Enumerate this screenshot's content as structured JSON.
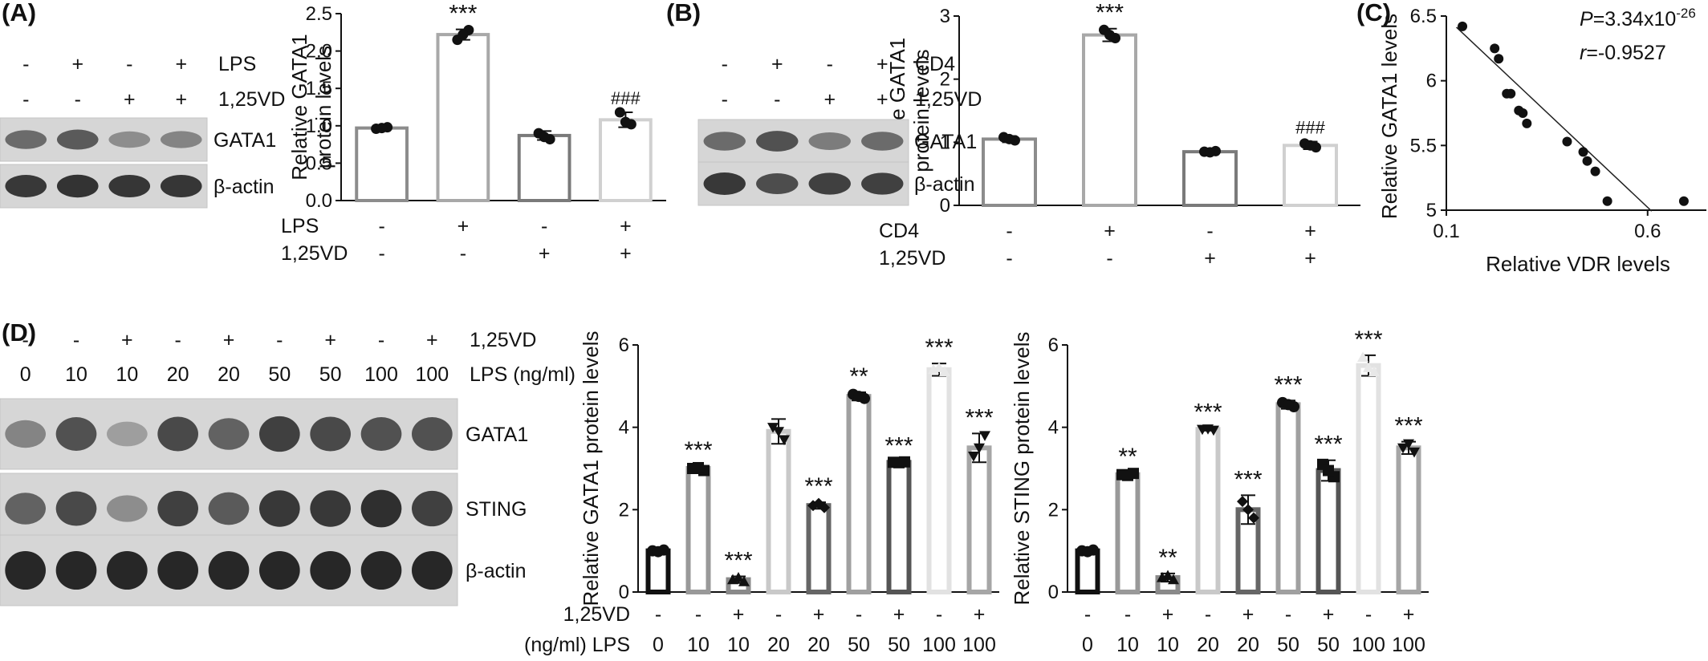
{
  "panels": {
    "A": {
      "label": "(A)",
      "blot": {
        "treatment_rows": [
          {
            "name": "LPS",
            "signs": [
              "-",
              "+",
              "-",
              "+"
            ]
          },
          {
            "name": "1,25VD",
            "signs": [
              "-",
              "-",
              "+",
              "+"
            ]
          }
        ],
        "bands": [
          "GATA1",
          "β-actin"
        ],
        "intensity": [
          [
            0.55,
            0.65,
            0.35,
            0.4
          ],
          [
            0.85,
            0.88,
            0.86,
            0.86
          ]
        ]
      }
    },
    "B": {
      "label": "(B)",
      "blot": {
        "treatment_rows": [
          {
            "name": "CD4",
            "signs": [
              "-",
              "+",
              "-",
              "+"
            ]
          },
          {
            "name": "1,25VD",
            "signs": [
              "-",
              "-",
              "+",
              "+"
            ]
          }
        ],
        "bands": [
          "GATA1",
          "β-actin"
        ],
        "intensity": [
          [
            0.55,
            0.7,
            0.45,
            0.55
          ],
          [
            0.85,
            0.72,
            0.8,
            0.8
          ]
        ]
      }
    },
    "C": {
      "label": "(C)"
    },
    "D": {
      "label": "(D)",
      "blot": {
        "treatment_rows": [
          {
            "name": "1,25VD",
            "signs": [
              "-",
              "-",
              "+",
              "-",
              "+",
              "-",
              "+",
              "-",
              "+"
            ]
          },
          {
            "name": "LPS (ng/ml)",
            "signs": [
              "0",
              "10",
              "10",
              "20",
              "20",
              "50",
              "50",
              "100",
              "100"
            ]
          }
        ],
        "bands": [
          "GATA1",
          "STING",
          "β-actin"
        ],
        "intensity": [
          [
            0.4,
            0.7,
            0.25,
            0.75,
            0.6,
            0.8,
            0.75,
            0.7,
            0.7
          ],
          [
            0.6,
            0.75,
            0.35,
            0.8,
            0.65,
            0.85,
            0.85,
            0.9,
            0.8
          ],
          [
            0.95,
            0.95,
            0.95,
            0.95,
            0.95,
            0.95,
            0.95,
            0.95,
            0.95
          ]
        ]
      }
    }
  },
  "chart_data": [
    {
      "id": "A-bar",
      "type": "bar",
      "ylabel": "Relative GATA1 protein levels",
      "ylim": [
        0,
        2.5
      ],
      "yticks": [
        "0.0",
        "0.5",
        "1.0",
        "1.5",
        "2.0",
        "2.5"
      ],
      "values": [
        0.97,
        2.22,
        0.87,
        1.08
      ],
      "errors": [
        0.02,
        0.07,
        0.06,
        0.1
      ],
      "points": [
        [
          0.96,
          0.98,
          0.97
        ],
        [
          2.15,
          2.28,
          2.22
        ],
        [
          0.9,
          0.82,
          0.85
        ],
        [
          1.18,
          1.02,
          1.05
        ]
      ],
      "bar_colors": [
        "#8c8c8c",
        "#a8a8a8",
        "#7a7a7a",
        "#d0d0d0"
      ],
      "annotations": [
        "",
        "***",
        "",
        "###"
      ],
      "condition_rows": [
        {
          "name": "LPS",
          "signs": [
            "-",
            "+",
            "-",
            "+"
          ]
        },
        {
          "name": "1,25VD",
          "signs": [
            "-",
            "-",
            "+",
            "+"
          ]
        }
      ]
    },
    {
      "id": "B-bar",
      "type": "bar",
      "ylabel": "Relative GATA1 protein levels",
      "ylim": [
        0,
        3
      ],
      "yticks": [
        "0",
        "1",
        "2",
        "3"
      ],
      "values": [
        1.05,
        2.7,
        0.85,
        0.95
      ],
      "errors": [
        0.05,
        0.1,
        0.03,
        0.06
      ],
      "points": [
        [
          1.08,
          1.03,
          1.05
        ],
        [
          2.78,
          2.65,
          2.7
        ],
        [
          0.85,
          0.86,
          0.84
        ],
        [
          0.98,
          0.92,
          0.95
        ]
      ],
      "bar_colors": [
        "#8c8c8c",
        "#a8a8a8",
        "#7a7a7a",
        "#d0d0d0"
      ],
      "annotations": [
        "",
        "***",
        "",
        "###"
      ],
      "condition_rows": [
        {
          "name": "CD4",
          "signs": [
            "-",
            "+",
            "-",
            "+"
          ]
        },
        {
          "name": "1,25VD",
          "signs": [
            "-",
            "-",
            "+",
            "+"
          ]
        }
      ]
    },
    {
      "id": "C-scatter",
      "type": "scatter",
      "xlabel": "Relative VDR levels",
      "ylabel": "Relative GATA1 levels",
      "xlim": [
        0.1,
        0.75
      ],
      "ylim": [
        5,
        6.5
      ],
      "xticks": [
        "0.1",
        "0.6"
      ],
      "yticks": [
        "5",
        "5.5",
        "6",
        "6.5"
      ],
      "p_label": "P",
      "p_text": "=3.34x10",
      "p_exp": "-26",
      "r_label": "r",
      "r_text": "=-0.9527",
      "points": [
        [
          0.14,
          6.42
        ],
        [
          0.22,
          6.25
        ],
        [
          0.23,
          6.17
        ],
        [
          0.25,
          5.9
        ],
        [
          0.26,
          5.9
        ],
        [
          0.28,
          5.77
        ],
        [
          0.29,
          5.75
        ],
        [
          0.3,
          5.67
        ],
        [
          0.4,
          5.53
        ],
        [
          0.44,
          5.45
        ],
        [
          0.45,
          5.38
        ],
        [
          0.47,
          5.3
        ],
        [
          0.5,
          5.07
        ],
        [
          0.69,
          5.07
        ]
      ],
      "fit": {
        "slope": -2.93,
        "intercept": 6.78
      }
    },
    {
      "id": "D-gata1",
      "type": "bar",
      "ylabel": "Relative GATA1 protein levels",
      "ylim": [
        0,
        6
      ],
      "yticks": [
        "0",
        "2",
        "4",
        "6"
      ],
      "values": [
        1.0,
        3.0,
        0.3,
        3.9,
        2.1,
        4.75,
        3.15,
        5.4,
        3.5
      ],
      "errors": [
        0.03,
        0.06,
        0.08,
        0.3,
        0.08,
        0.1,
        0.02,
        0.15,
        0.35
      ],
      "points": [
        [
          1.0,
          1.02,
          0.98
        ],
        [
          3.0,
          2.95,
          3.02
        ],
        [
          0.3,
          0.25,
          0.35
        ],
        [
          4.0,
          3.7,
          3.9
        ],
        [
          2.1,
          2.05,
          2.15
        ],
        [
          4.8,
          4.7,
          4.75
        ],
        [
          3.15,
          3.16,
          3.14
        ],
        [
          5.4,
          5.35,
          5.45
        ],
        [
          3.3,
          3.8,
          3.5
        ]
      ],
      "bar_colors": [
        "#111111",
        "#999999",
        "#8a8a8a",
        "#c9c9c9",
        "#666666",
        "#a0a0a0",
        "#555555",
        "#e2e2e2",
        "#a6a6a6"
      ],
      "markers": [
        "circle",
        "square",
        "triangle-up",
        "triangle-down",
        "diamond",
        "circle",
        "square",
        "triangle-up",
        "triangle-down"
      ],
      "annotations": [
        "",
        "***",
        "***",
        "",
        "***",
        "**",
        "***",
        "***",
        "***"
      ],
      "condition_rows": [
        {
          "name": "1,25VD",
          "signs": [
            "-",
            "-",
            "+",
            "-",
            "+",
            "-",
            "+",
            "-",
            "+"
          ]
        },
        {
          "name": "(ng/ml) LPS",
          "signs": [
            "0",
            "10",
            "10",
            "20",
            "20",
            "50",
            "50",
            "100",
            "100"
          ]
        }
      ]
    },
    {
      "id": "D-sting",
      "type": "bar",
      "ylabel": "Relative STING protein levels",
      "ylim": [
        0,
        6
      ],
      "yticks": [
        "0",
        "2",
        "4",
        "6"
      ],
      "values": [
        1.0,
        2.85,
        0.35,
        3.95,
        2.0,
        4.55,
        2.95,
        5.5,
        3.5
      ],
      "errors": [
        0.03,
        0.05,
        0.1,
        0.03,
        0.35,
        0.1,
        0.25,
        0.25,
        0.15
      ],
      "points": [
        [
          1.0,
          1.02,
          0.98
        ],
        [
          2.85,
          2.88,
          2.83
        ],
        [
          0.35,
          0.3,
          0.4
        ],
        [
          3.95,
          3.93,
          3.96
        ],
        [
          2.2,
          1.8,
          2.0
        ],
        [
          4.6,
          4.5,
          4.55
        ],
        [
          3.1,
          2.8,
          2.95
        ],
        [
          5.7,
          5.35,
          5.45
        ],
        [
          3.5,
          3.4,
          3.6
        ]
      ],
      "bar_colors": [
        "#111111",
        "#999999",
        "#8a8a8a",
        "#c9c9c9",
        "#666666",
        "#a0a0a0",
        "#555555",
        "#e2e2e2",
        "#a6a6a6"
      ],
      "markers": [
        "circle",
        "square",
        "triangle-up",
        "triangle-down",
        "diamond",
        "circle",
        "square",
        "triangle-up",
        "triangle-down"
      ],
      "annotations": [
        "",
        "**",
        "**",
        "***",
        "***",
        "***",
        "***",
        "***",
        "***"
      ],
      "condition_rows": [
        {
          "name": "",
          "signs": [
            "-",
            "-",
            "+",
            "-",
            "+",
            "-",
            "+",
            "-",
            "+"
          ]
        },
        {
          "name": "",
          "signs": [
            "0",
            "10",
            "10",
            "20",
            "20",
            "50",
            "50",
            "100",
            "100"
          ]
        }
      ]
    }
  ]
}
